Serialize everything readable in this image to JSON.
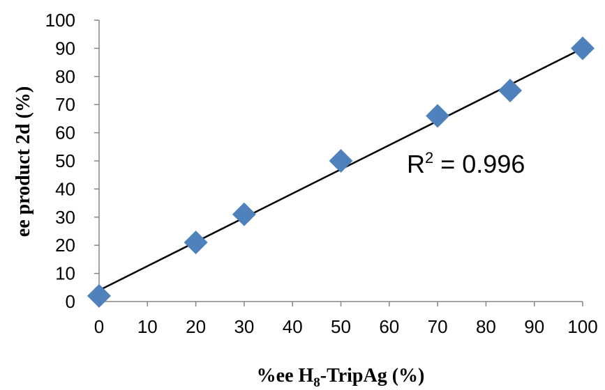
{
  "chart_data": {
    "type": "scatter",
    "title": "",
    "xlabel_parts": {
      "prefix": "%ee H",
      "subscript": "8",
      "suffix": "-TripAg (%)"
    },
    "ylabel": "ee product 2d (%)",
    "xlim": [
      0,
      100
    ],
    "ylim": [
      0,
      100
    ],
    "x_ticks": [
      0,
      10,
      20,
      30,
      40,
      50,
      60,
      70,
      80,
      90,
      100
    ],
    "y_ticks": [
      0,
      10,
      20,
      30,
      40,
      50,
      60,
      70,
      80,
      90,
      100
    ],
    "grid": false,
    "legend": "none",
    "series": [
      {
        "marker": "diamond",
        "color": "#4f81bd",
        "points": [
          {
            "x": 0,
            "y": 2
          },
          {
            "x": 20,
            "y": 21
          },
          {
            "x": 30,
            "y": 31
          },
          {
            "x": 50,
            "y": 50
          },
          {
            "x": 70,
            "y": 66
          },
          {
            "x": 85,
            "y": 75
          },
          {
            "x": 100,
            "y": 90
          }
        ]
      }
    ],
    "trendline": {
      "type": "linear",
      "x": [
        0,
        100
      ],
      "y": [
        4,
        90
      ],
      "color": "#000000"
    },
    "annotation": {
      "text_base": "R",
      "text_sup": "2",
      "text_rest": " = 0.996"
    }
  }
}
